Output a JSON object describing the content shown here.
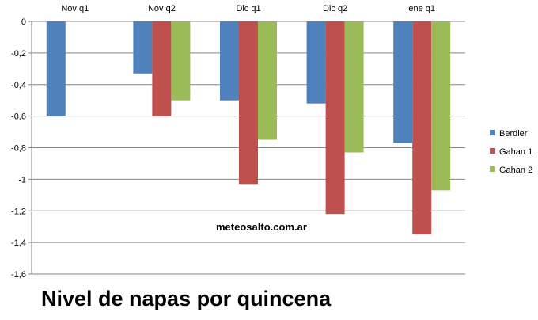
{
  "chart_data": {
    "type": "bar",
    "title": "Nivel de napas por quincena",
    "xlabel": "",
    "ylabel": "",
    "categories": [
      "Nov q1",
      "Nov q2",
      "Dic q1",
      "Dic q2",
      "ene q1"
    ],
    "series": [
      {
        "name": "Berdier",
        "color": "#4F81BD",
        "values": [
          -0.6,
          -0.33,
          -0.5,
          -0.52,
          -0.77
        ]
      },
      {
        "name": "Gahan 1",
        "color": "#C0504D",
        "values": [
          null,
          -0.6,
          -1.03,
          -1.22,
          -1.35
        ]
      },
      {
        "name": "Gahan 2",
        "color": "#9BBB59",
        "values": [
          null,
          -0.5,
          -0.75,
          -0.83,
          -1.07
        ]
      }
    ],
    "ylim": [
      -1.6,
      0
    ],
    "yticks": [
      0,
      -0.2,
      -0.4,
      -0.6,
      -0.8,
      -1,
      -1.2,
      -1.4,
      -1.6
    ],
    "ytick_labels": [
      "0",
      "-0,2",
      "-0,4",
      "-0,6",
      "-0,8",
      "-1",
      "-1,2",
      "-1,4",
      "-1,6"
    ],
    "grid": true,
    "legend_position": "right",
    "annotation": "meteosalto.com.ar",
    "gridline_color": "#868686"
  }
}
